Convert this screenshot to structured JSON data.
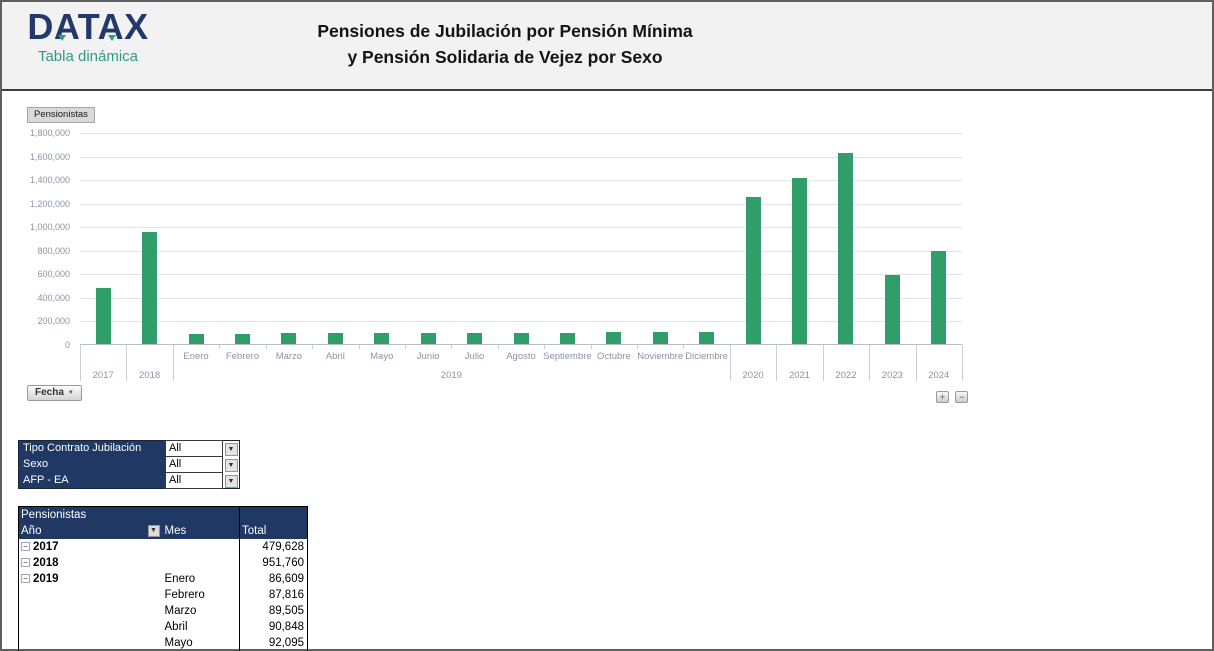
{
  "header": {
    "logo": "DATAX",
    "logo_subtitle": "Tabla dinámica",
    "title_line1": "Pensiones de Jubilación por Pensión Mínima",
    "title_line2": "y Pensión Solidaria de Vejez por Sexo"
  },
  "chart": {
    "value_field_button": "Pensionistas",
    "axis_field_button": "Fecha",
    "expand_button": "+",
    "collapse_button": "−"
  },
  "chart_data": {
    "type": "bar",
    "title": "Pensiones de Jubilación por Pensión Mínima y Pensión Solidaria de Vejez por Sexo",
    "xlabel": "Fecha",
    "ylabel": "Pensionistas",
    "ylim": [
      0,
      1800000
    ],
    "ytick_step": 200000,
    "grid": true,
    "legend": "none",
    "bar_color": "#2F9E68",
    "groups": [
      {
        "label": "2017",
        "values": [
          479628
        ]
      },
      {
        "label": "2018",
        "values": [
          951760
        ]
      },
      {
        "label": "2019",
        "months": [
          "Enero",
          "Febrero",
          "Marzo",
          "Abril",
          "Mayo",
          "Junio",
          "Julio",
          "Agosto",
          "Septiembre",
          "Octubre",
          "Noviembre",
          "Diciembre"
        ],
        "values": [
          86609,
          87816,
          89505,
          90848,
          92095,
          93300,
          94500,
          95600,
          96700,
          97700,
          98700,
          99600
        ]
      },
      {
        "label": "2020",
        "values": [
          1250000
        ]
      },
      {
        "label": "2021",
        "values": [
          1410000
        ]
      },
      {
        "label": "2022",
        "values": [
          1620000
        ]
      },
      {
        "label": "2023",
        "values": [
          585000
        ]
      },
      {
        "label": "2024",
        "values": [
          790000
        ]
      }
    ]
  },
  "filters": {
    "rows": [
      {
        "label": "Tipo Contrato Jubilación",
        "value": "All"
      },
      {
        "label": "Sexo",
        "value": "All"
      },
      {
        "label": "AFP - EA",
        "value": "All"
      }
    ]
  },
  "pivot": {
    "title": "Pensionistas",
    "col_year": "Año",
    "col_month": "Mes",
    "col_total": "Total",
    "rows": [
      {
        "year": "2017",
        "collapsible": true,
        "month": "",
        "total": "479,628"
      },
      {
        "year": "2018",
        "collapsible": true,
        "month": "",
        "total": "951,760"
      },
      {
        "year": "2019",
        "collapsible": true,
        "month": "Enero",
        "total": "86,609"
      },
      {
        "year": "",
        "collapsible": false,
        "month": "Febrero",
        "total": "87,816"
      },
      {
        "year": "",
        "collapsible": false,
        "month": "Marzo",
        "total": "89,505"
      },
      {
        "year": "",
        "collapsible": false,
        "month": "Abril",
        "total": "90,848"
      },
      {
        "year": "",
        "collapsible": false,
        "month": "Mayo",
        "total": "92,095"
      }
    ]
  },
  "icons": {
    "dropdown": "▼",
    "collapse": "−"
  },
  "colors": {
    "navy": "#1F3864",
    "bar_green": "#2F9E68",
    "teal": "#2E9C85",
    "axis_text": "#8A93A6"
  }
}
